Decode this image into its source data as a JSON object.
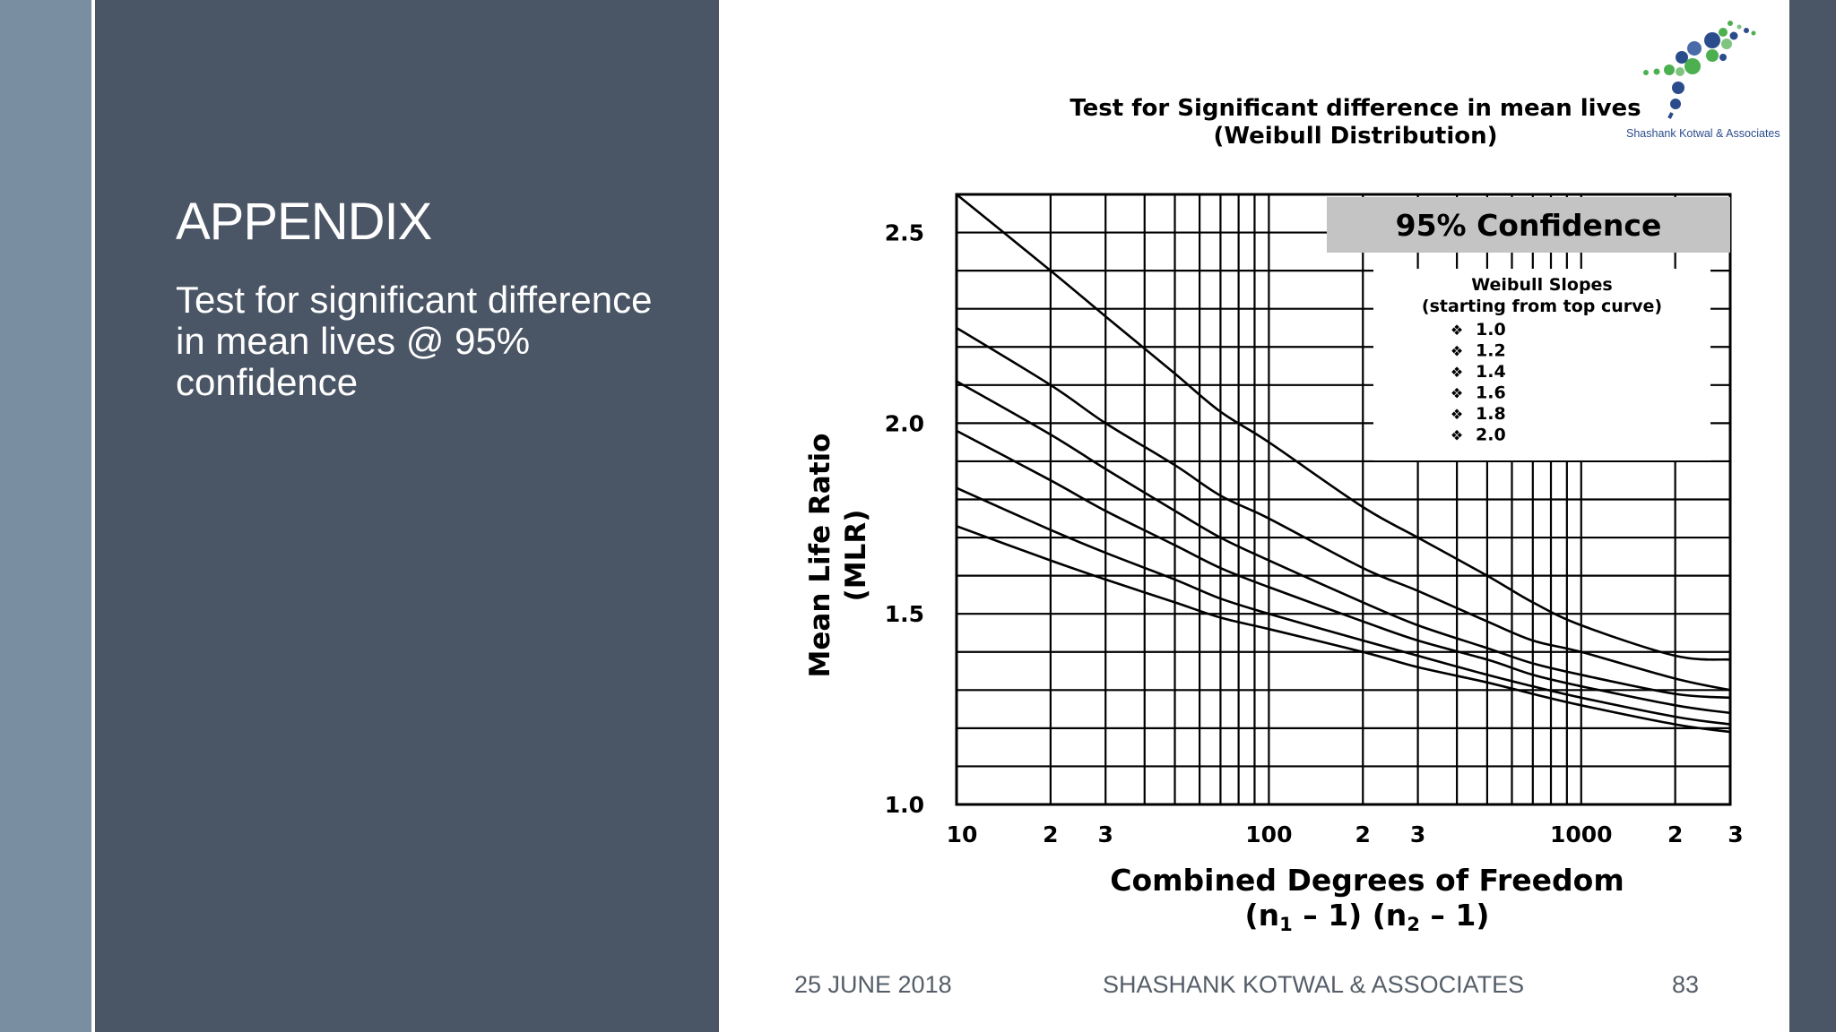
{
  "slide": {
    "title": "APPENDIX",
    "subtitle": "Test for significant difference in mean lives @ 95% confidence"
  },
  "footer": {
    "date": "25 JUNE 2018",
    "company": "SHASHANK KOTWAL & ASSOCIATES",
    "page": "83"
  },
  "logo": {
    "text": "Shashank Kotwal & Associates"
  },
  "colors": {
    "side_panel": "#4a5565",
    "left_stripe": "#7a8ea2",
    "logo_blue": "#2b4c8c",
    "logo_green": "#4caf50",
    "confidence_box": "#c4c4c4"
  },
  "chart_data": {
    "type": "line",
    "title": "Test for Significant difference in mean lives",
    "subtitle": "(Weibull Distribution)",
    "xlabel": "Combined Degrees of Freedom",
    "xlabel_line2_parts": [
      "(n",
      "1",
      " – 1) (n",
      "2",
      " – 1)"
    ],
    "ylabel": "Mean Life Ratio",
    "ylabel_line2": "(MLR)",
    "x_scale": "log",
    "xlim": [
      10,
      3000
    ],
    "ylim": [
      1.0,
      2.6
    ],
    "x_tick_labels": [
      {
        "x": 10,
        "label": "10"
      },
      {
        "x": 20,
        "label": "2"
      },
      {
        "x": 30,
        "label": "3"
      },
      {
        "x": 100,
        "label": "100"
      },
      {
        "x": 200,
        "label": "2"
      },
      {
        "x": 300,
        "label": "3"
      },
      {
        "x": 1000,
        "label": "1000"
      },
      {
        "x": 2000,
        "label": "2"
      },
      {
        "x": 3000,
        "label": "3"
      }
    ],
    "y_tick_labels": [
      {
        "y": 1.0,
        "label": "1.0"
      },
      {
        "y": 1.5,
        "label": "1.5"
      },
      {
        "y": 2.0,
        "label": "2.0"
      },
      {
        "y": 2.5,
        "label": "2.5"
      }
    ],
    "x_gridlines": [
      10,
      20,
      30,
      40,
      50,
      60,
      70,
      80,
      90,
      100,
      200,
      300,
      400,
      500,
      600,
      700,
      800,
      900,
      1000,
      2000,
      3000
    ],
    "y_gridlines": [
      1.0,
      1.1,
      1.2,
      1.3,
      1.4,
      1.5,
      1.6,
      1.7,
      1.8,
      1.9,
      2.0,
      2.1,
      2.2,
      2.3,
      2.4,
      2.5,
      2.6
    ],
    "grid": true,
    "confidence_label": "95% Confidence",
    "legend_title": "Weibull Slopes",
    "legend_subtitle": "(starting from top curve)",
    "legend_bullet": "❖",
    "legend_position": "top-right",
    "series": [
      {
        "name": "1.0",
        "points": [
          [
            10,
            2.6
          ],
          [
            20,
            2.4
          ],
          [
            30,
            2.28
          ],
          [
            50,
            2.13
          ],
          [
            70,
            2.03
          ],
          [
            100,
            1.95
          ],
          [
            200,
            1.78
          ],
          [
            300,
            1.7
          ],
          [
            500,
            1.6
          ],
          [
            700,
            1.53
          ],
          [
            1000,
            1.47
          ],
          [
            2000,
            1.39
          ],
          [
            3000,
            1.38
          ]
        ]
      },
      {
        "name": "1.2",
        "points": [
          [
            10,
            2.25
          ],
          [
            20,
            2.1
          ],
          [
            30,
            2.0
          ],
          [
            50,
            1.89
          ],
          [
            70,
            1.81
          ],
          [
            100,
            1.75
          ],
          [
            200,
            1.62
          ],
          [
            300,
            1.56
          ],
          [
            500,
            1.48
          ],
          [
            700,
            1.43
          ],
          [
            1000,
            1.4
          ],
          [
            2000,
            1.33
          ],
          [
            3000,
            1.3
          ]
        ]
      },
      {
        "name": "1.4",
        "points": [
          [
            10,
            2.11
          ],
          [
            20,
            1.97
          ],
          [
            30,
            1.88
          ],
          [
            50,
            1.77
          ],
          [
            70,
            1.7
          ],
          [
            100,
            1.64
          ],
          [
            200,
            1.53
          ],
          [
            300,
            1.47
          ],
          [
            500,
            1.41
          ],
          [
            700,
            1.37
          ],
          [
            1000,
            1.34
          ],
          [
            2000,
            1.29
          ],
          [
            3000,
            1.28
          ]
        ]
      },
      {
        "name": "1.6",
        "points": [
          [
            10,
            1.98
          ],
          [
            20,
            1.85
          ],
          [
            30,
            1.77
          ],
          [
            50,
            1.68
          ],
          [
            70,
            1.62
          ],
          [
            100,
            1.57
          ],
          [
            200,
            1.48
          ],
          [
            300,
            1.43
          ],
          [
            500,
            1.38
          ],
          [
            700,
            1.34
          ],
          [
            1000,
            1.31
          ],
          [
            2000,
            1.26
          ],
          [
            3000,
            1.24
          ]
        ]
      },
      {
        "name": "1.8",
        "points": [
          [
            10,
            1.83
          ],
          [
            20,
            1.72
          ],
          [
            30,
            1.66
          ],
          [
            50,
            1.59
          ],
          [
            70,
            1.54
          ],
          [
            100,
            1.5
          ],
          [
            200,
            1.43
          ],
          [
            300,
            1.39
          ],
          [
            500,
            1.34
          ],
          [
            700,
            1.31
          ],
          [
            1000,
            1.28
          ],
          [
            2000,
            1.23
          ],
          [
            3000,
            1.21
          ]
        ]
      },
      {
        "name": "2.0",
        "points": [
          [
            10,
            1.73
          ],
          [
            20,
            1.64
          ],
          [
            30,
            1.59
          ],
          [
            50,
            1.53
          ],
          [
            70,
            1.49
          ],
          [
            100,
            1.46
          ],
          [
            200,
            1.4
          ],
          [
            300,
            1.36
          ],
          [
            500,
            1.32
          ],
          [
            700,
            1.29
          ],
          [
            1000,
            1.26
          ],
          [
            2000,
            1.21
          ],
          [
            3000,
            1.19
          ]
        ]
      }
    ]
  }
}
